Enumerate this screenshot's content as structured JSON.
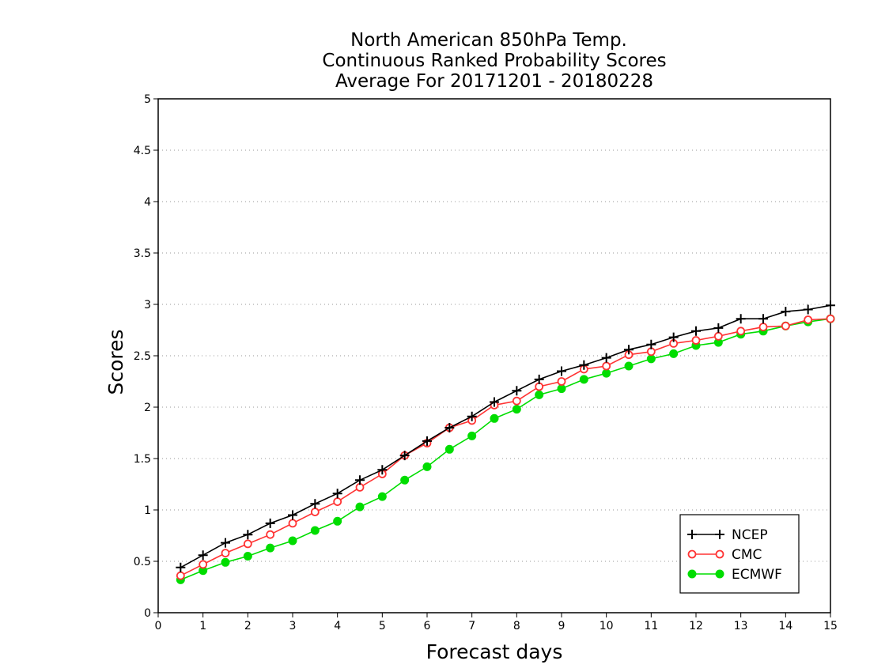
{
  "chart_data": {
    "type": "line",
    "title": [
      "North American 850hPa Temp.",
      "Continuous Ranked Probability Scores",
      "Average For 20171201 - 20180228"
    ],
    "xlabel": "Forecast days",
    "ylabel": "Scores",
    "xlim": [
      0,
      15
    ],
    "ylim": [
      0,
      5
    ],
    "xticks": [
      0,
      1,
      2,
      3,
      4,
      5,
      6,
      7,
      8,
      9,
      10,
      11,
      12,
      13,
      14,
      15
    ],
    "xtick_labels": [
      "0",
      "1",
      "2",
      "3",
      "4",
      "5",
      "6",
      "7",
      "8",
      "9",
      "10",
      "11",
      "12",
      "13",
      "14",
      "15"
    ],
    "yticks": [
      0,
      0.5,
      1,
      1.5,
      2,
      2.5,
      3,
      3.5,
      4,
      4.5,
      5
    ],
    "ytick_labels": [
      "0",
      "0.5",
      "1",
      "1.5",
      "2",
      "2.5",
      "3",
      "3.5",
      "4",
      "4.5",
      "5"
    ],
    "grid": "horizontal dotted",
    "legend_position": "bottom-right",
    "x": [
      0.5,
      1,
      1.5,
      2,
      2.5,
      3,
      3.5,
      4,
      4.5,
      5,
      5.5,
      6,
      6.5,
      7,
      7.5,
      8,
      8.5,
      9,
      9.5,
      10,
      10.5,
      11,
      11.5,
      12,
      12.5,
      13,
      13.5,
      14,
      14.5,
      15
    ],
    "series": [
      {
        "name": "NCEP",
        "color": "#000000",
        "marker": "plus",
        "values": [
          0.44,
          0.56,
          0.68,
          0.76,
          0.87,
          0.95,
          1.06,
          1.16,
          1.29,
          1.39,
          1.53,
          1.67,
          1.8,
          1.91,
          2.05,
          2.16,
          2.27,
          2.35,
          2.41,
          2.48,
          2.56,
          2.61,
          2.68,
          2.74,
          2.77,
          2.86,
          2.86,
          2.93,
          2.95,
          2.99
        ]
      },
      {
        "name": "CMC",
        "color": "#ff3333",
        "marker": "open-circle",
        "values": [
          0.36,
          0.47,
          0.58,
          0.67,
          0.76,
          0.87,
          0.98,
          1.08,
          1.22,
          1.35,
          1.53,
          1.65,
          1.8,
          1.87,
          2.02,
          2.06,
          2.2,
          2.25,
          2.37,
          2.4,
          2.51,
          2.54,
          2.62,
          2.65,
          2.69,
          2.74,
          2.78,
          2.79,
          2.85,
          2.86
        ]
      },
      {
        "name": "ECMWF",
        "color": "#00dd00",
        "marker": "filled-circle",
        "values": [
          0.32,
          0.41,
          0.49,
          0.55,
          0.63,
          0.7,
          0.8,
          0.89,
          1.03,
          1.13,
          1.29,
          1.42,
          1.59,
          1.72,
          1.89,
          1.98,
          2.12,
          2.18,
          2.27,
          2.33,
          2.4,
          2.47,
          2.52,
          2.6,
          2.63,
          2.71,
          2.74,
          2.79,
          2.83,
          2.86
        ]
      }
    ]
  }
}
